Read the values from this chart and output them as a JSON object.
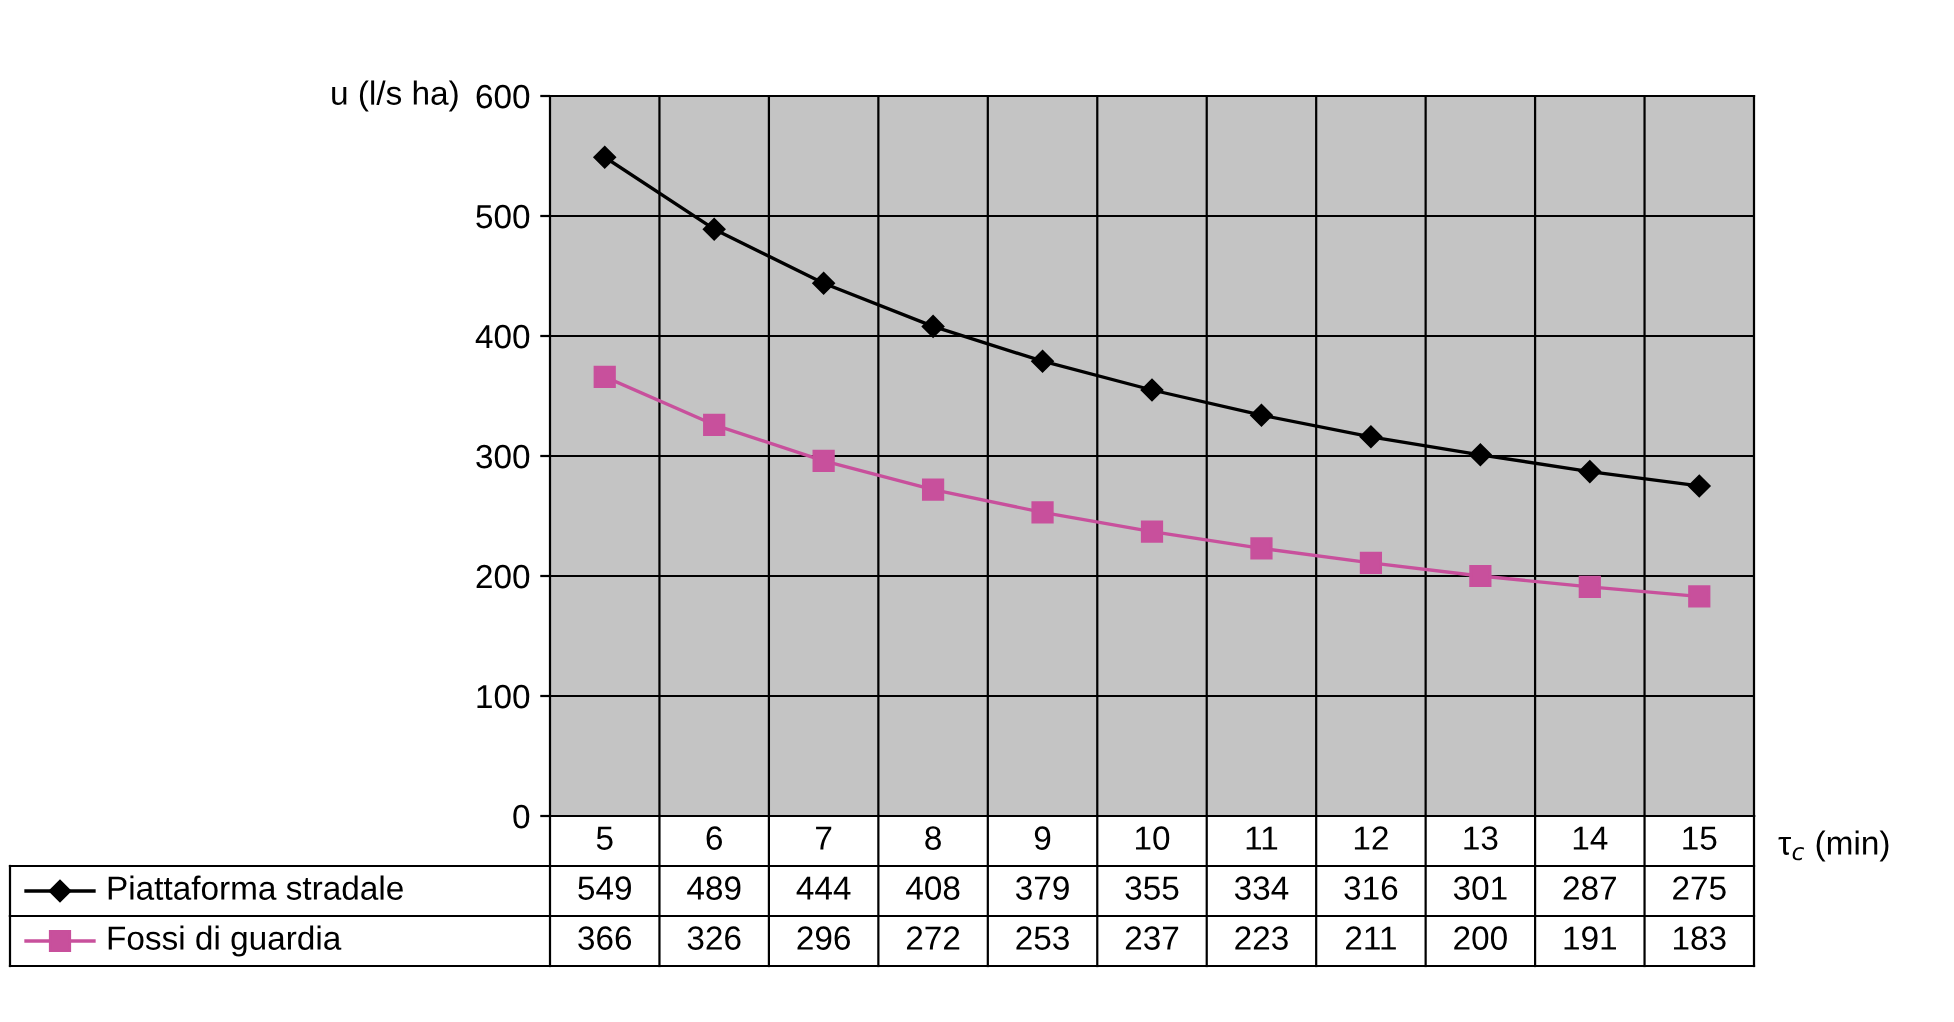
{
  "chart_data": {
    "type": "line",
    "xlabel": "τ$_{c}$ (min)",
    "ylabel": "u (l/s ha)",
    "categories": [
      "5",
      "6",
      "7",
      "8",
      "9",
      "10",
      "11",
      "12",
      "13",
      "14",
      "15"
    ],
    "series": [
      {
        "name": "Piattaforma stradale",
        "color": "#000000",
        "marker": "diamond",
        "values": [
          549,
          489,
          444,
          408,
          379,
          355,
          334,
          316,
          301,
          287,
          275
        ]
      },
      {
        "name": "Fossi di guardia",
        "color": "#c8509c",
        "marker": "square",
        "values": [
          366,
          326,
          296,
          272,
          253,
          237,
          223,
          211,
          200,
          191,
          183
        ]
      }
    ],
    "ylim": [
      0,
      600
    ],
    "yticks": [
      0,
      100,
      200,
      300,
      400,
      500,
      600
    ],
    "grid": true,
    "legend": "bottom",
    "data_labels": true
  }
}
